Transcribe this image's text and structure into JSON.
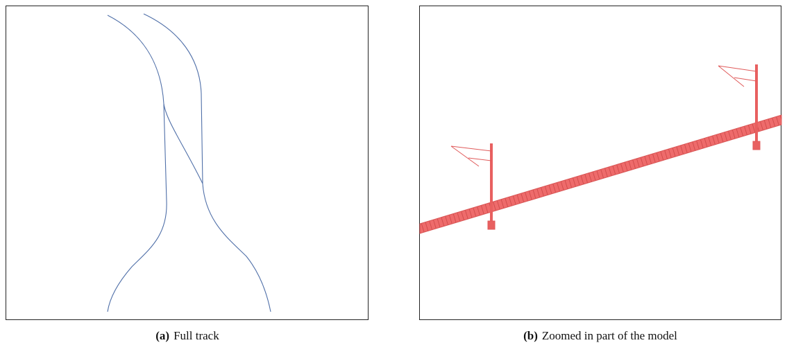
{
  "figure": {
    "panels": [
      {
        "label": "(a)",
        "caption": "Full track"
      },
      {
        "label": "(b)",
        "caption": "Zoomed in part of the model"
      }
    ]
  }
}
